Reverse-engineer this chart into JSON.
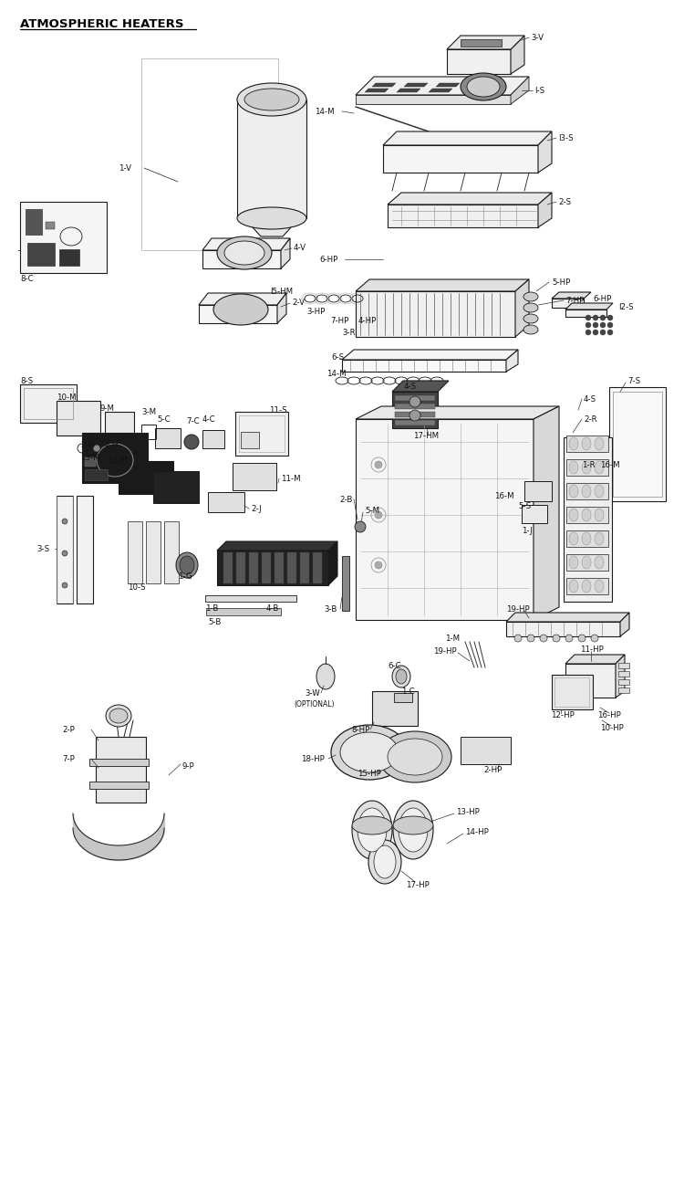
{
  "title": "ATMOSPHERIC HEATERS",
  "background_color": "#ffffff",
  "line_color": "#1a1a1a",
  "label_color": "#111111",
  "label_fontsize": 6.2
}
